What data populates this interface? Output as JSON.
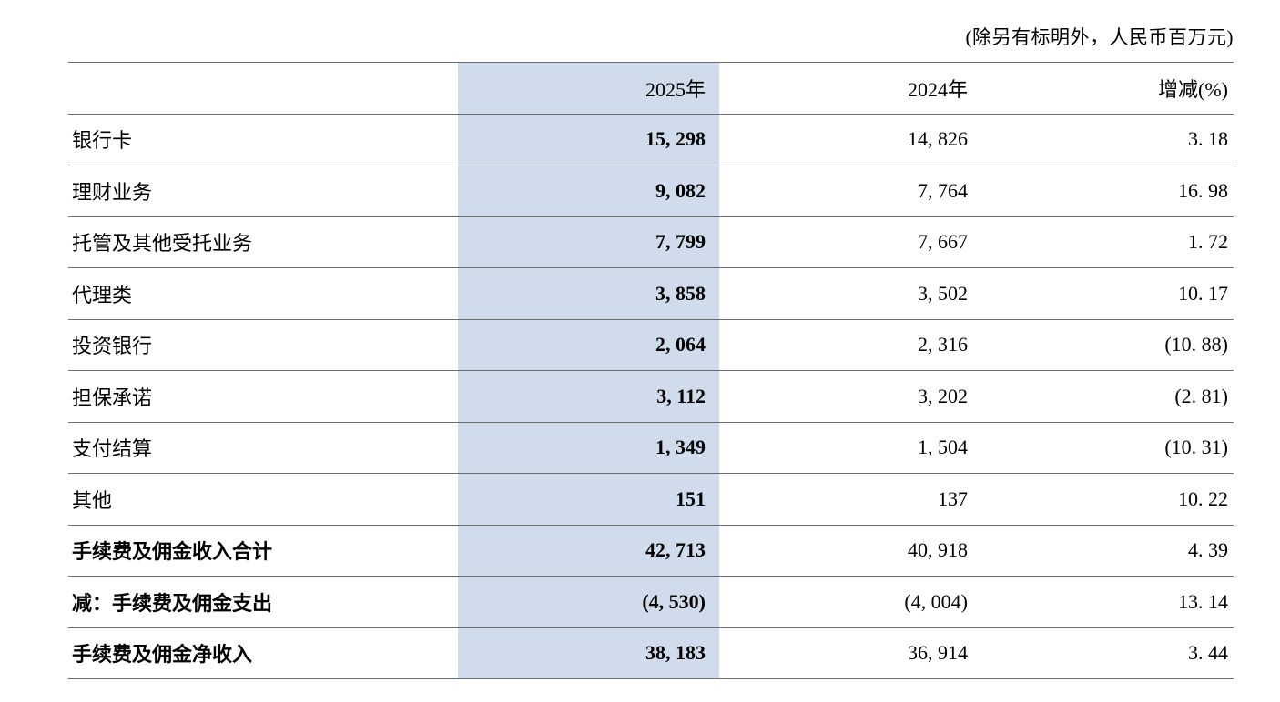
{
  "note": "(除另有标明外，人民币百万元)",
  "table": {
    "columns": {
      "label": "",
      "y2025": "2025年",
      "y2024": "2024年",
      "change": "增减(%)"
    },
    "rows": [
      {
        "label": "银行卡",
        "v2025": "15, 298",
        "v2024": "14, 826",
        "change": "3. 18",
        "bold": false
      },
      {
        "label": "理财业务",
        "v2025": "9, 082",
        "v2024": "7, 764",
        "change": "16. 98",
        "bold": false
      },
      {
        "label": "托管及其他受托业务",
        "v2025": "7, 799",
        "v2024": "7, 667",
        "change": "1. 72",
        "bold": false
      },
      {
        "label": "代理类",
        "v2025": "3, 858",
        "v2024": "3, 502",
        "change": "10. 17",
        "bold": false
      },
      {
        "label": "投资银行",
        "v2025": "2, 064",
        "v2024": "2, 316",
        "change": "(10. 88)",
        "bold": false
      },
      {
        "label": "担保承诺",
        "v2025": "3, 112",
        "v2024": "3, 202",
        "change": "(2. 81)",
        "bold": false
      },
      {
        "label": "支付结算",
        "v2025": "1, 349",
        "v2024": "1, 504",
        "change": "(10. 31)",
        "bold": false
      },
      {
        "label": "其他",
        "v2025": "151",
        "v2024": "137",
        "change": "10. 22",
        "bold": false
      },
      {
        "label": "手续费及佣金收入合计",
        "v2025": "42, 713",
        "v2024": "40, 918",
        "change": "4. 39",
        "bold": true
      },
      {
        "label": "减：手续费及佣金支出",
        "v2025": "(4, 530)",
        "v2024": "(4, 004)",
        "change": "13. 14",
        "bold": true
      },
      {
        "label": "手续费及佣金净收入",
        "v2025": "38, 183",
        "v2024": "36, 914",
        "change": "3. 44",
        "bold": true
      }
    ]
  }
}
